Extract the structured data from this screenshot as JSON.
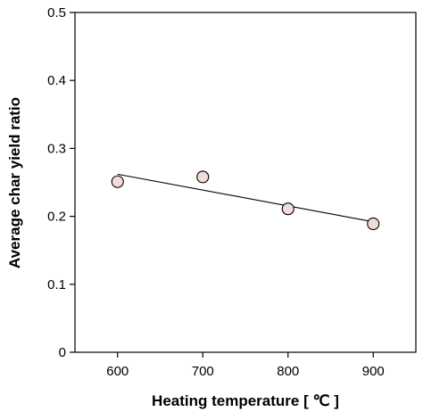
{
  "chart_data": {
    "type": "scatter",
    "title": "",
    "xlabel": "Heating temperature [ ℃ ]",
    "ylabel": "Average char yield ratio",
    "xlim": [
      550,
      950
    ],
    "ylim": [
      0,
      0.5
    ],
    "xticks": [
      {
        "value": 600,
        "label": "600"
      },
      {
        "value": 700,
        "label": "700"
      },
      {
        "value": 800,
        "label": "800"
      },
      {
        "value": 900,
        "label": "900"
      }
    ],
    "yticks": [
      {
        "value": 0,
        "label": "0"
      },
      {
        "value": 0.1,
        "label": "0.1"
      },
      {
        "value": 0.2,
        "label": "0.2"
      },
      {
        "value": 0.3,
        "label": "0.3"
      },
      {
        "value": 0.4,
        "label": "0.4"
      },
      {
        "value": 0.5,
        "label": "0.5"
      }
    ],
    "series": [
      {
        "points": [
          {
            "x": 600,
            "y": 0.251
          },
          {
            "x": 700,
            "y": 0.258
          },
          {
            "x": 800,
            "y": 0.211
          },
          {
            "x": 900,
            "y": 0.189
          }
        ],
        "marker_color": "#f2dcd8",
        "edge_color": "#000000"
      }
    ],
    "trendline": {
      "x": [
        600,
        900
      ],
      "y": [
        0.262,
        0.192
      ],
      "color": "#000000"
    },
    "grid": false,
    "legend": false
  }
}
